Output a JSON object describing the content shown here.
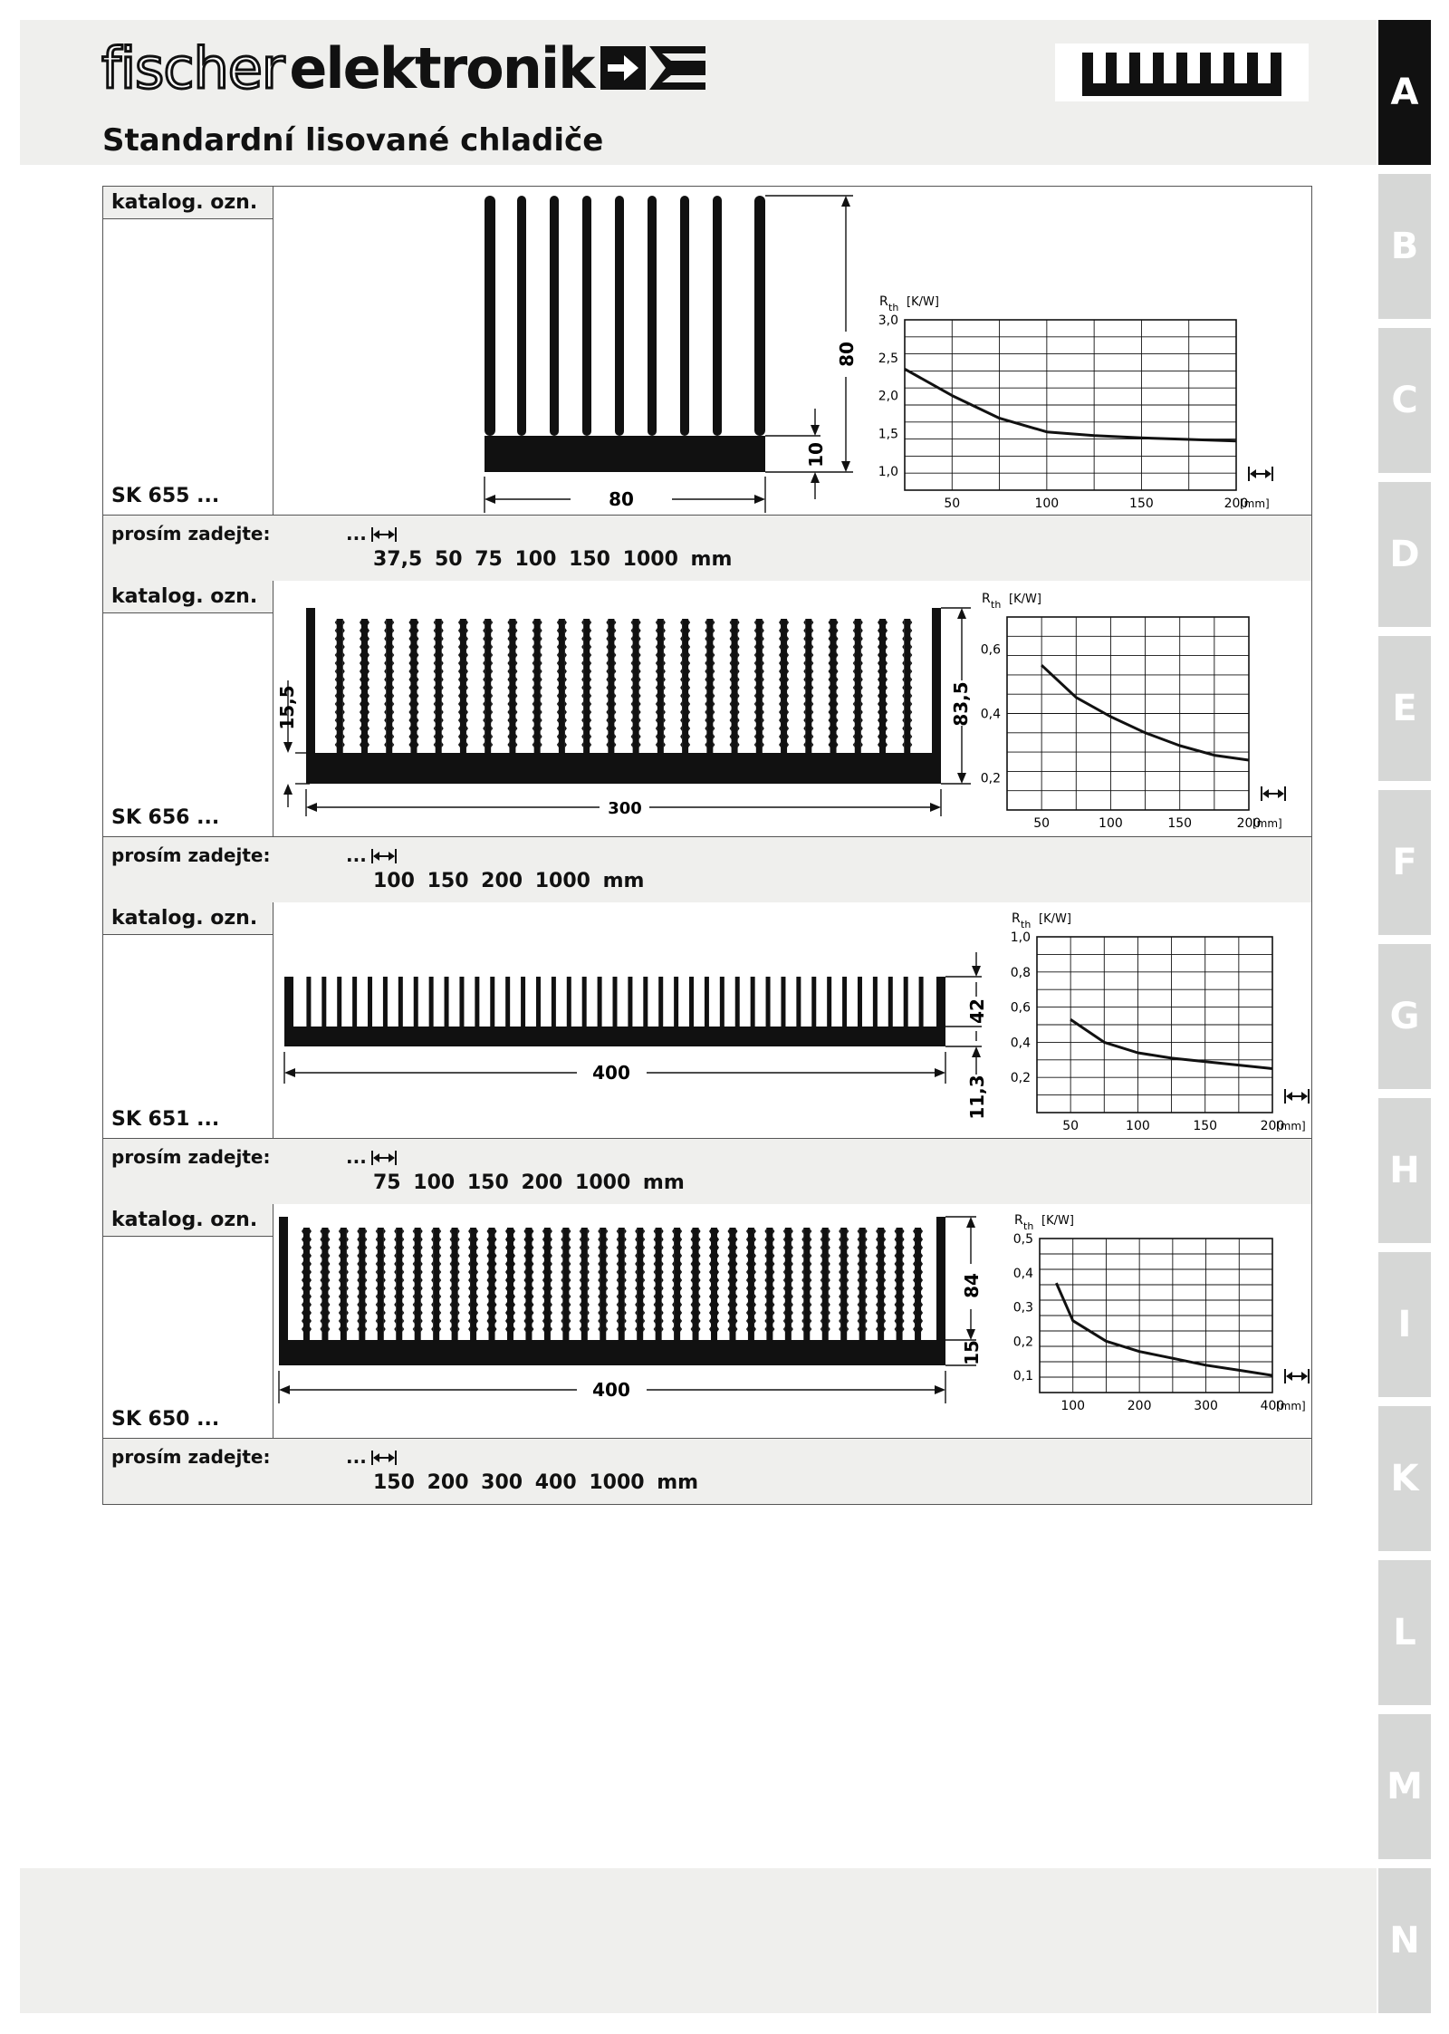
{
  "brand": {
    "part1": "fischer",
    "part2": "elektronik"
  },
  "page_title": "Standardní lisované chladiče",
  "tabs": [
    "A",
    "B",
    "C",
    "D",
    "E",
    "F",
    "G",
    "H",
    "I",
    "K",
    "L",
    "M",
    "N"
  ],
  "active_tab": "A",
  "catalog_label": "katalog. ozn.",
  "order_label": "prosím zadejte:",
  "order_dots": "...",
  "products": [
    {
      "code": "SK 655 ...",
      "lengths": "37,5  50  75  100  150  1000 mm",
      "dims": {
        "width": "80",
        "height": "80",
        "base": "10"
      },
      "chart_data": {
        "type": "line",
        "ylabel": "R",
        "ylabel_sub": "th",
        "yunit": "[K/W]",
        "xunit": "[mm]",
        "xlim": [
          25,
          200
        ],
        "ylim": [
          0.75,
          3.0
        ],
        "xticks": [
          "50",
          "100",
          "150",
          "200"
        ],
        "yticks": [
          "1,0",
          "1,5",
          "2,0",
          "2,5",
          "3,0"
        ],
        "x": [
          25,
          50,
          75,
          100,
          125,
          150,
          175,
          200
        ],
        "y": [
          2.35,
          2.0,
          1.7,
          1.52,
          1.47,
          1.44,
          1.42,
          1.4
        ]
      }
    },
    {
      "code": "SK 656 ...",
      "lengths": "100  150  200  1000 mm",
      "dims": {
        "width": "300",
        "height": "83,5",
        "base": "15,5"
      },
      "chart_data": {
        "type": "line",
        "ylabel": "R",
        "ylabel_sub": "th",
        "yunit": "[K/W]",
        "xunit": "[mm]",
        "xlim": [
          25,
          200
        ],
        "ylim": [
          0.1,
          0.7
        ],
        "xticks": [
          "50",
          "100",
          "150",
          "200"
        ],
        "yticks": [
          "0,2",
          "0,4",
          "0,6"
        ],
        "x": [
          50,
          75,
          100,
          125,
          150,
          175,
          200
        ],
        "y": [
          0.55,
          0.45,
          0.39,
          0.34,
          0.3,
          0.27,
          0.255
        ]
      }
    },
    {
      "code": "SK 651 ...",
      "lengths": "75  100  150  200  1000 mm",
      "dims": {
        "width": "400",
        "height": "42",
        "base": "11,3"
      },
      "chart_data": {
        "type": "line",
        "ylabel": "R",
        "ylabel_sub": "th",
        "yunit": "[K/W]",
        "xunit": "[mm]",
        "xlim": [
          25,
          200
        ],
        "ylim": [
          0.0,
          1.0
        ],
        "xticks": [
          "50",
          "100",
          "150",
          "200"
        ],
        "yticks": [
          "0,2",
          "0,4",
          "0,6",
          "0,8",
          "1,0"
        ],
        "x": [
          50,
          75,
          100,
          125,
          150,
          175,
          200
        ],
        "y": [
          0.53,
          0.4,
          0.34,
          0.31,
          0.29,
          0.27,
          0.25
        ]
      }
    },
    {
      "code": "SK 650 ...",
      "lengths": "150  200  300  400  1000 mm",
      "dims": {
        "width": "400",
        "height": "84",
        "base": "15"
      },
      "chart_data": {
        "type": "line",
        "ylabel": "R",
        "ylabel_sub": "th",
        "yunit": "[K/W]",
        "xunit": "[mm]",
        "xlim": [
          50,
          400
        ],
        "ylim": [
          0.05,
          0.5
        ],
        "xticks": [
          "100",
          "200",
          "300",
          "400"
        ],
        "yticks": [
          "0,1",
          "0,2",
          "0,3",
          "0,4",
          "0,5"
        ],
        "x": [
          75,
          100,
          150,
          200,
          250,
          300,
          350,
          400
        ],
        "y": [
          0.37,
          0.26,
          0.2,
          0.17,
          0.15,
          0.13,
          0.115,
          0.1
        ]
      }
    }
  ]
}
